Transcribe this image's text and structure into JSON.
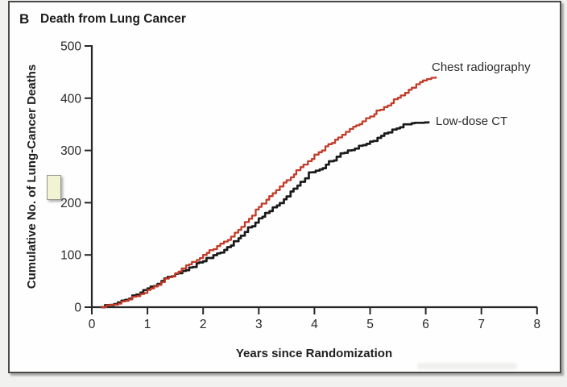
{
  "figure": {
    "panel_letter": "B",
    "title": "Death from Lung Cancer"
  },
  "chart_data": {
    "type": "line",
    "subtype": "cumulative-incidence-step-curves",
    "title": "Death from Lung Cancer",
    "xlabel": "Years since Randomization",
    "ylabel": "Cumulative No. of Lung-Cancer Deaths",
    "xlim": [
      0,
      8
    ],
    "ylim": [
      0,
      500
    ],
    "x_ticks": [
      "0",
      "1",
      "2",
      "3",
      "4",
      "5",
      "6",
      "7",
      "8"
    ],
    "y_ticks": [
      "0",
      "100",
      "200",
      "300",
      "400",
      "500"
    ],
    "grid": false,
    "legend": "inline labels at right ends of curves",
    "series": [
      {
        "name": "Chest radiography",
        "color": "#c23b28",
        "final_value": 440,
        "points": [
          [
            0.18,
            0
          ],
          [
            0.4,
            4
          ],
          [
            0.6,
            12
          ],
          [
            0.8,
            21
          ],
          [
            1.0,
            33
          ],
          [
            1.25,
            48
          ],
          [
            1.5,
            65
          ],
          [
            1.75,
            82
          ],
          [
            2.0,
            100
          ],
          [
            2.25,
            117
          ],
          [
            2.5,
            135
          ],
          [
            2.75,
            163
          ],
          [
            3.0,
            192
          ],
          [
            3.25,
            218
          ],
          [
            3.5,
            243
          ],
          [
            3.75,
            268
          ],
          [
            4.0,
            292
          ],
          [
            4.25,
            312
          ],
          [
            4.5,
            330
          ],
          [
            4.75,
            348
          ],
          [
            5.0,
            365
          ],
          [
            5.25,
            383
          ],
          [
            5.5,
            401
          ],
          [
            5.75,
            420
          ],
          [
            5.95,
            434
          ],
          [
            6.1,
            439
          ],
          [
            6.18,
            440
          ]
        ]
      },
      {
        "name": "Low-dose CT",
        "color": "#1a1a1a",
        "final_value": 354,
        "points": [
          [
            0.18,
            0
          ],
          [
            0.4,
            6
          ],
          [
            0.6,
            14
          ],
          [
            0.8,
            24
          ],
          [
            1.0,
            36
          ],
          [
            1.25,
            50
          ],
          [
            1.5,
            64
          ],
          [
            1.75,
            76
          ],
          [
            2.0,
            88
          ],
          [
            2.25,
            103
          ],
          [
            2.5,
            118
          ],
          [
            2.75,
            144
          ],
          [
            3.0,
            170
          ],
          [
            3.25,
            191
          ],
          [
            3.5,
            212
          ],
          [
            3.75,
            240
          ],
          [
            3.9,
            258
          ],
          [
            4.15,
            266
          ],
          [
            4.4,
            288
          ],
          [
            4.6,
            300
          ],
          [
            4.8,
            309
          ],
          [
            5.0,
            317
          ],
          [
            5.2,
            328
          ],
          [
            5.4,
            340
          ],
          [
            5.6,
            350
          ],
          [
            5.8,
            353
          ],
          [
            6.05,
            354
          ]
        ]
      }
    ]
  },
  "artifacts": {
    "stray_note_box": {
      "fill": "#f2f3d2",
      "border": "#97978f"
    }
  }
}
